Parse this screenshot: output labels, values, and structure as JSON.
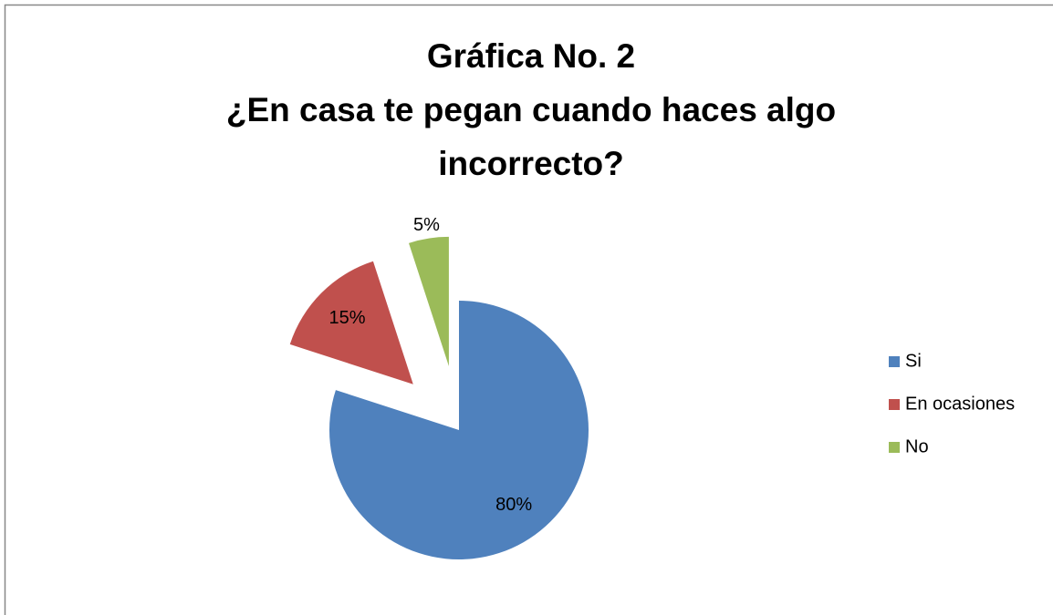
{
  "chart_data": {
    "type": "pie",
    "title": [
      "Gráfica No.  2",
      "¿En casa te pegan cuando haces algo",
      "incorrecto?"
    ],
    "categories": [
      "Si",
      "En ocasiones",
      "No"
    ],
    "values": [
      80,
      15,
      5
    ],
    "value_labels": [
      "80%",
      "15%",
      "5%"
    ],
    "colors": [
      "#4f81bd",
      "#c0504d",
      "#9bbb59"
    ],
    "explode": [
      0,
      0.5,
      0.5
    ],
    "legend": "right"
  }
}
